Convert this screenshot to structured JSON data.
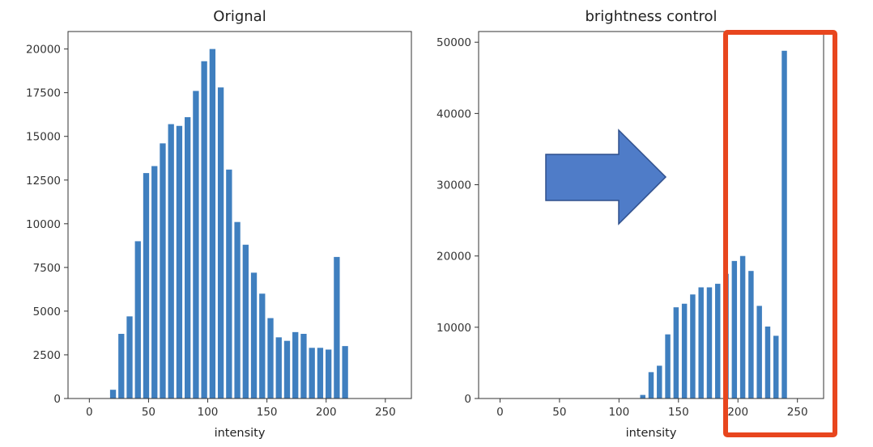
{
  "colors": {
    "bar": "#3f7fbf",
    "axis": "#333333",
    "highlight": "#e8461e",
    "arrow_fill": "#4f7cc8",
    "arrow_stroke": "#2f4f8c"
  },
  "annotations": {
    "arrow": {
      "shape": "block-arrow-right"
    },
    "highlight_box": {
      "shape": "rectangle-outline",
      "covers": "intensity 190–260 of right chart"
    }
  },
  "chart_data": [
    {
      "type": "bar",
      "title": "Orignal",
      "xlabel": "intensity",
      "ylabel": "",
      "xlim": [
        -18,
        272
      ],
      "ylim": [
        0,
        21000
      ],
      "xticks": [
        0,
        50,
        100,
        150,
        200,
        250
      ],
      "yticks": [
        0,
        2500,
        5000,
        7500,
        10000,
        12500,
        15000,
        17500,
        20000
      ],
      "bar_width": 5,
      "x": [
        20,
        27,
        34,
        41,
        48,
        55,
        62,
        69,
        76,
        83,
        90,
        97,
        104,
        111,
        118,
        125,
        132,
        139,
        146,
        153,
        160,
        167,
        174,
        181,
        188,
        195,
        202,
        209,
        216,
        223,
        230
      ],
      "values": [
        500,
        3700,
        4700,
        9000,
        12900,
        13300,
        14600,
        15700,
        15600,
        16100,
        17600,
        19300,
        20000,
        17800,
        13100,
        10100,
        8800,
        7200,
        6000,
        4600,
        3500,
        3300,
        3800,
        3700,
        2900,
        2900,
        2800,
        8100,
        3000,
        0,
        0
      ]
    },
    {
      "type": "bar",
      "title": "brightness control",
      "xlabel": "intensity",
      "ylabel": "",
      "xlim": [
        -18,
        272
      ],
      "ylim": [
        0,
        51500
      ],
      "xticks": [
        0,
        50,
        100,
        150,
        200,
        250
      ],
      "yticks": [
        0,
        10000,
        20000,
        30000,
        40000,
        50000
      ],
      "bar_width": 4.4,
      "x": [
        120,
        127,
        134,
        141,
        148,
        155,
        162,
        169,
        176,
        183,
        190,
        197,
        204,
        211,
        218,
        225,
        232,
        239,
        246,
        253
      ],
      "values": [
        500,
        3700,
        4600,
        9000,
        12800,
        13300,
        14600,
        15600,
        15600,
        16100,
        17500,
        19300,
        20000,
        17900,
        13000,
        10100,
        8800,
        48800,
        0,
        0
      ]
    }
  ]
}
